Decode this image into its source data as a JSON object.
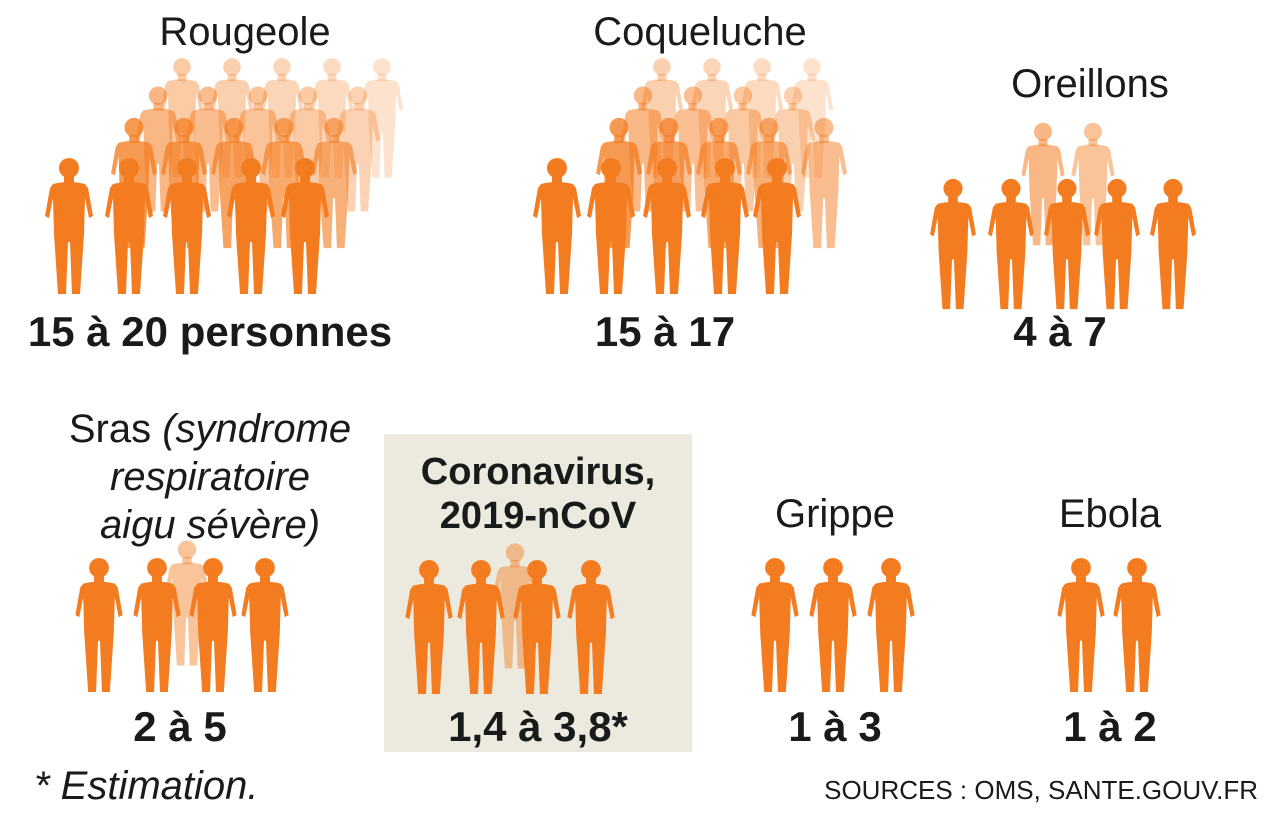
{
  "colors": {
    "figure": "#f47c20",
    "highlight_bg": "#eceade",
    "text": "#1a1a1a"
  },
  "diseases": [
    {
      "id": "rougeole",
      "label": "Rougeole",
      "value": "15 à 20 personnes",
      "figures_count": 20,
      "highlight": false
    },
    {
      "id": "coqueluche",
      "label": "Coqueluche",
      "value": "15 à 17",
      "figures_count": 17,
      "highlight": false
    },
    {
      "id": "oreillons",
      "label": "Oreillons",
      "value": "4 à 7",
      "figures_count": 7,
      "highlight": false
    },
    {
      "id": "sras",
      "label_line1": "Sras",
      "label_line1_italic": "(syndrome",
      "label_line2": "respiratoire",
      "label_line3": "aigu sévère)",
      "value": "2 à 5",
      "figures_count": 5,
      "highlight": false
    },
    {
      "id": "coronavirus",
      "label_line1": "Coronavirus,",
      "label_line2": "2019-nCoV",
      "value": "1,4 à 3,8*",
      "figures_count": 4,
      "highlight": true
    },
    {
      "id": "grippe",
      "label": "Grippe",
      "value": "1 à 3",
      "figures_count": 3,
      "highlight": false
    },
    {
      "id": "ebola",
      "label": "Ebola",
      "value": "1 à 2",
      "figures_count": 2,
      "highlight": false
    }
  ],
  "footnote": "* Estimation.",
  "sources": "SOURCES : OMS, SANTE.GOUV.FR"
}
